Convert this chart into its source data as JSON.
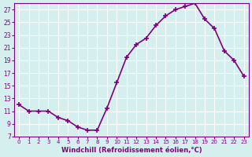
{
  "x": [
    0,
    1,
    2,
    3,
    4,
    5,
    6,
    7,
    8,
    9,
    10,
    11,
    12,
    13,
    14,
    15,
    16,
    17,
    18,
    19,
    20,
    21,
    22,
    23
  ],
  "y": [
    12,
    11,
    11,
    11,
    10,
    9.5,
    8.5,
    8,
    8,
    11.5,
    15.5,
    19.5,
    21.5,
    22.5,
    24.5,
    26,
    27,
    27.5,
    28,
    25.5,
    24,
    20.5,
    19,
    16.5
  ],
  "line_color": "#800080",
  "marker": "+",
  "marker_size": 5,
  "linewidth": 1.2,
  "xlabel": "Windchill (Refroidissement éolien,°C)",
  "xlim": [
    -0.5,
    23.5
  ],
  "ylim": [
    7,
    28
  ],
  "yticks": [
    7,
    9,
    11,
    13,
    15,
    17,
    19,
    21,
    23,
    25,
    27
  ],
  "xticks": [
    0,
    1,
    2,
    3,
    4,
    5,
    6,
    7,
    8,
    9,
    10,
    11,
    12,
    13,
    14,
    15,
    16,
    17,
    18,
    19,
    20,
    21,
    22,
    23
  ],
  "bg_color": "#d5eeee",
  "grid_color": "#ffffff",
  "tick_color": "#800080",
  "label_color": "#800080"
}
